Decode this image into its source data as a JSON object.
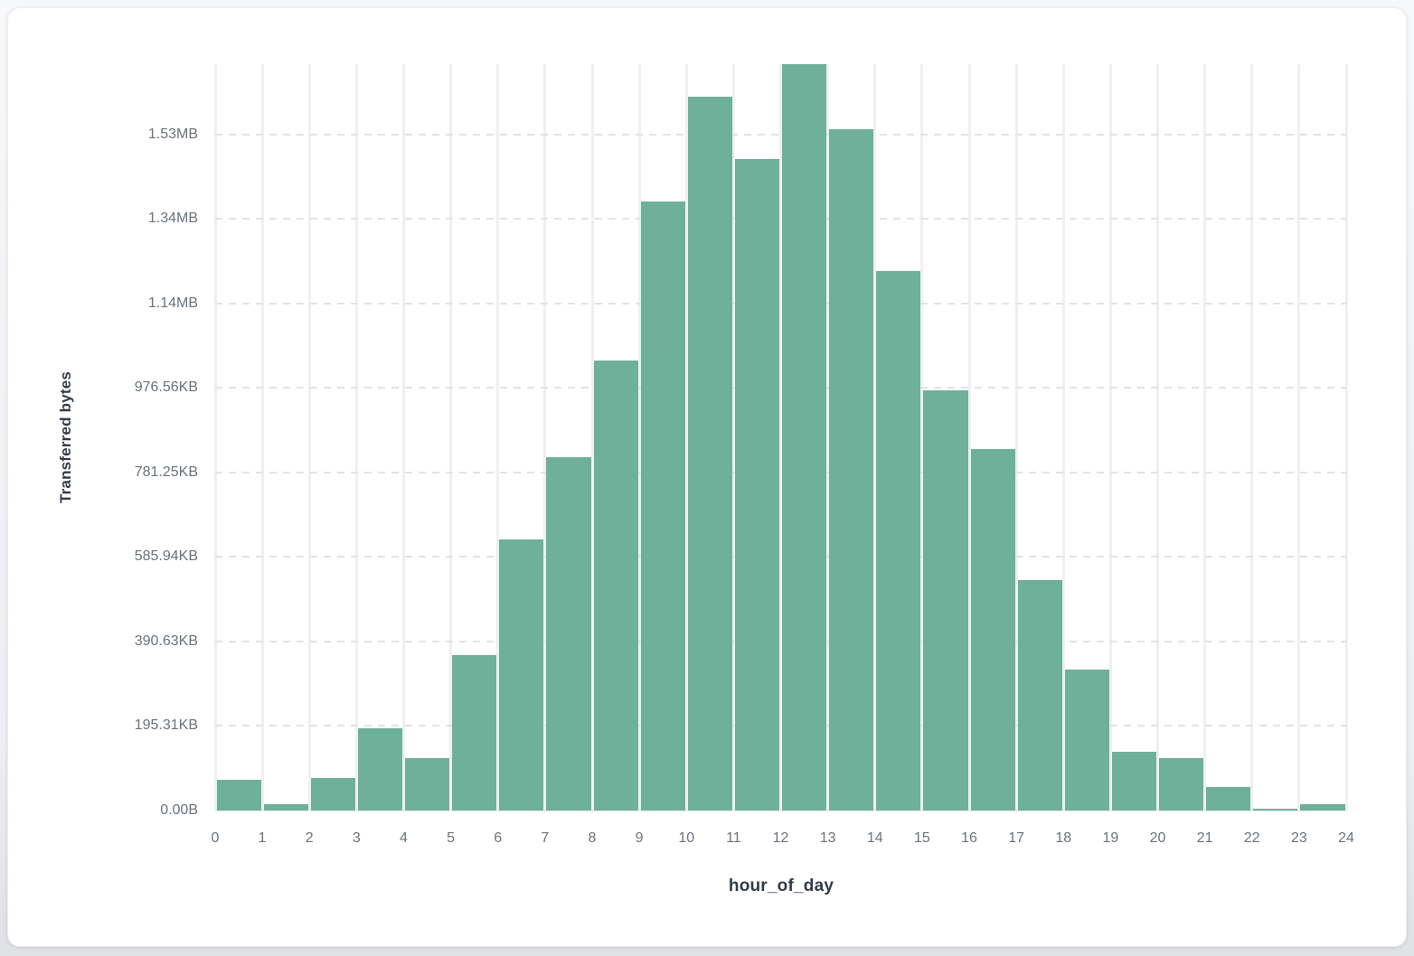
{
  "page": {
    "background_top": "#f7f8fa",
    "background_bottom": "#dfe1e4",
    "card_background": "#ffffff"
  },
  "chart_data": {
    "type": "bar",
    "title": "",
    "xlabel": "hour_of_day",
    "ylabel": "Transferred bytes",
    "hours": [
      0,
      1,
      2,
      3,
      4,
      5,
      6,
      7,
      8,
      9,
      10,
      11,
      12,
      13,
      14,
      15,
      16,
      17,
      18,
      19,
      20,
      21,
      22,
      23
    ],
    "values_bytes": [
      72000,
      15000,
      76000,
      195000,
      125000,
      367000,
      642000,
      837000,
      1065000,
      1441000,
      1688000,
      1542000,
      1766000,
      1612000,
      1276000,
      995000,
      855000,
      545000,
      333000,
      139000,
      125000,
      56000,
      5000,
      16000
    ],
    "x_tick_labels": [
      "0",
      "1",
      "2",
      "3",
      "4",
      "5",
      "6",
      "7",
      "8",
      "9",
      "10",
      "11",
      "12",
      "13",
      "14",
      "15",
      "16",
      "17",
      "18",
      "19",
      "20",
      "21",
      "22",
      "23",
      "24"
    ],
    "y_ticks": [
      {
        "label": "0.00B",
        "value": 0
      },
      {
        "label": "195.31KB",
        "value": 200000
      },
      {
        "label": "390.63KB",
        "value": 400000
      },
      {
        "label": "585.94KB",
        "value": 600000
      },
      {
        "label": "781.25KB",
        "value": 800000
      },
      {
        "label": "976.56KB",
        "value": 1000000
      },
      {
        "label": "1.14MB",
        "value": 1200000
      },
      {
        "label": "1.34MB",
        "value": 1400000
      },
      {
        "label": "1.53MB",
        "value": 1600000
      }
    ],
    "xlim": [
      0,
      24
    ],
    "ylim": [
      0,
      1766000
    ],
    "grid": true,
    "legend_position": "none",
    "bar_color": "#6fb09a",
    "vertical_grid_color": "#eef0f4",
    "horizontal_grid_color": "#dfe3e9",
    "tick_label_color": "#6a7280",
    "axis_title_color": "#343b48"
  }
}
